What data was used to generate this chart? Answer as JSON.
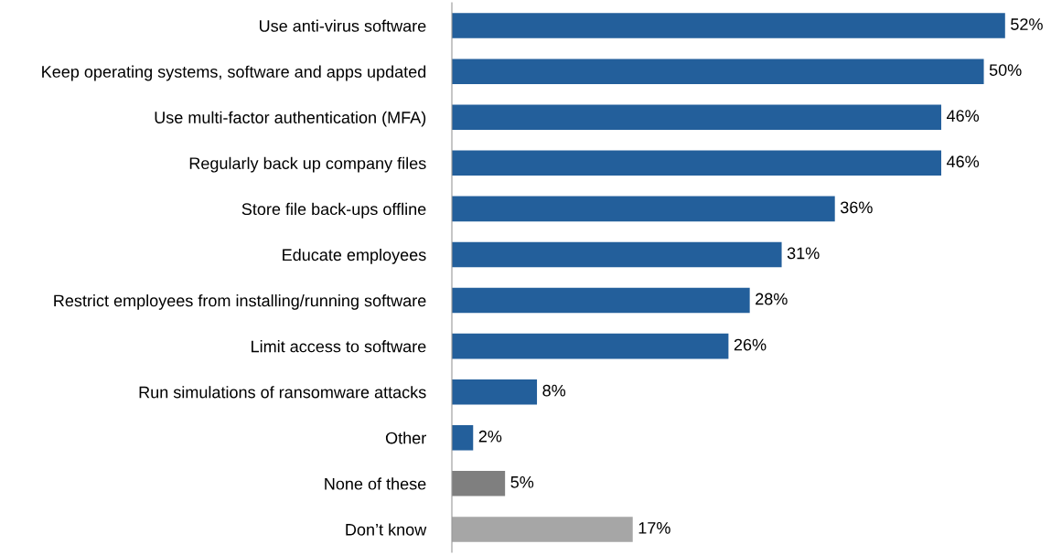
{
  "chart_data": {
    "type": "bar",
    "orientation": "horizontal",
    "categories": [
      "Use anti-virus software",
      "Keep operating systems, software and apps updated",
      "Use multi-factor authentication (MFA)",
      "Regularly back up company files",
      "Store file back-ups offline",
      "Educate employees",
      "Restrict employees from installing/running software",
      "Limit access to software",
      "Run simulations of ransomware attacks",
      "Other",
      "None of these",
      "Don’t know"
    ],
    "values": [
      52,
      50,
      46,
      46,
      36,
      31,
      28,
      26,
      8,
      2,
      5,
      17
    ],
    "colors": [
      "#235f9b",
      "#235f9b",
      "#235f9b",
      "#235f9b",
      "#235f9b",
      "#235f9b",
      "#235f9b",
      "#235f9b",
      "#235f9b",
      "#235f9b",
      "#7f7f7f",
      "#a6a6a6"
    ],
    "value_labels": [
      "52%",
      "50%",
      "46%",
      "46%",
      "36%",
      "31%",
      "28%",
      "26%",
      "8%",
      "2%",
      "5%",
      "17%"
    ],
    "grid": false,
    "legend": false
  }
}
